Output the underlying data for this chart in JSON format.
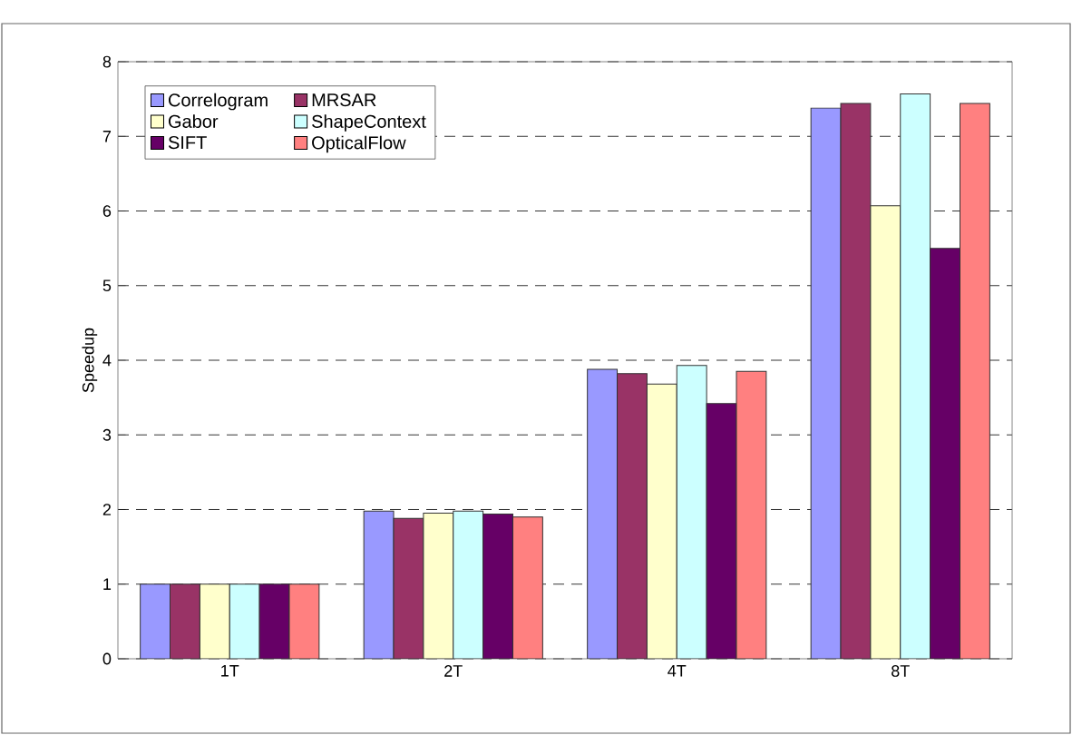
{
  "chart_data": {
    "type": "bar",
    "ylabel": "Speedup",
    "categories": [
      "1T",
      "2T",
      "4T",
      "8T"
    ],
    "series": [
      {
        "name": "Correlogram",
        "color": "#9999ff",
        "values": [
          1,
          1.98,
          3.88,
          7.38
        ]
      },
      {
        "name": "MRSAR",
        "color": "#993366",
        "values": [
          1,
          1.88,
          3.82,
          7.44
        ]
      },
      {
        "name": "Gabor",
        "color": "#ffffcc",
        "values": [
          1,
          1.95,
          3.68,
          6.07
        ]
      },
      {
        "name": "ShapeContext",
        "color": "#ccffff",
        "values": [
          1,
          1.98,
          3.93,
          7.57
        ]
      },
      {
        "name": "SIFT",
        "color": "#660066",
        "values": [
          1,
          1.94,
          3.42,
          5.5
        ]
      },
      {
        "name": "OpticalFlow",
        "color": "#ff8080",
        "values": [
          1,
          1.9,
          3.85,
          7.44
        ]
      }
    ],
    "ylim": [
      0,
      8
    ],
    "yticks": [
      0,
      1,
      2,
      3,
      4,
      5,
      6,
      7,
      8
    ],
    "grid": "y",
    "legend": "top left"
  }
}
